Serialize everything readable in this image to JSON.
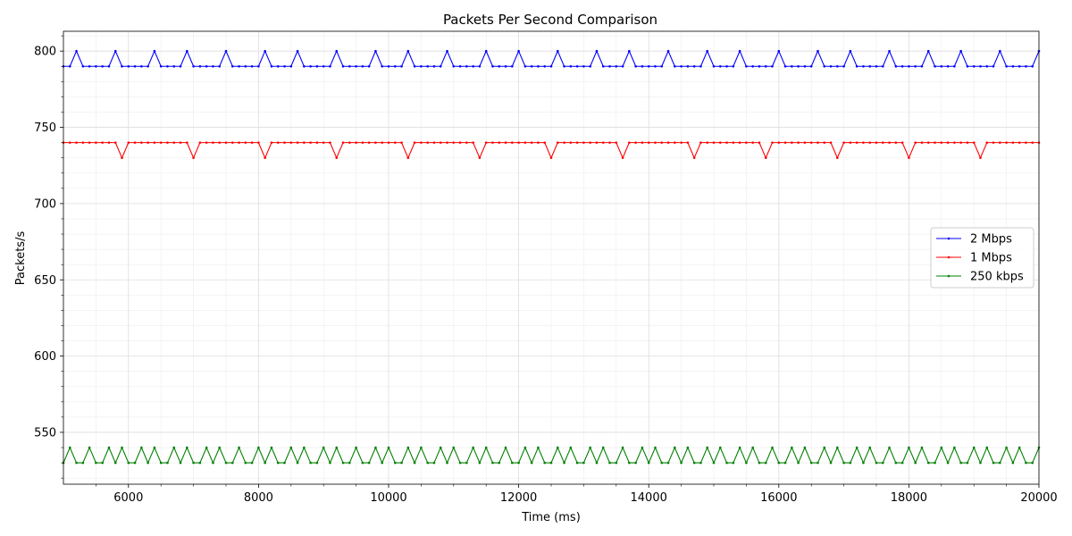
{
  "chart_data": {
    "type": "line",
    "title": "Packets Per Second Comparison",
    "xlabel": "Time (ms)",
    "ylabel": "Packets/s",
    "xlim": [
      5000,
      20000
    ],
    "ylim": [
      516,
      813
    ],
    "xticks": [
      6000,
      8000,
      10000,
      12000,
      14000,
      16000,
      18000,
      20000
    ],
    "yticks": [
      550,
      600,
      650,
      700,
      750,
      800
    ],
    "grid": true,
    "legend_position": "center-right",
    "x": [
      5000,
      5100,
      5200,
      5300,
      5400,
      5500,
      5600,
      5700,
      5800,
      5900,
      6000,
      6100,
      6200,
      6300,
      6400,
      6500,
      6600,
      6700,
      6800,
      6900,
      7000,
      7100,
      7200,
      7300,
      7400,
      7500,
      7600,
      7700,
      7800,
      7900,
      8000,
      8100,
      8200,
      8300,
      8400,
      8500,
      8600,
      8700,
      8800,
      8900,
      9000,
      9100,
      9200,
      9300,
      9400,
      9500,
      9600,
      9700,
      9800,
      9900,
      10000,
      10100,
      10200,
      10300,
      10400,
      10500,
      10600,
      10700,
      10800,
      10900,
      11000,
      11100,
      11200,
      11300,
      11400,
      11500,
      11600,
      11700,
      11800,
      11900,
      12000,
      12100,
      12200,
      12300,
      12400,
      12500,
      12600,
      12700,
      12800,
      12900,
      13000,
      13100,
      13200,
      13300,
      13400,
      13500,
      13600,
      13700,
      13800,
      13900,
      14000,
      14100,
      14200,
      14300,
      14400,
      14500,
      14600,
      14700,
      14800,
      14900,
      15000,
      15100,
      15200,
      15300,
      15400,
      15500,
      15600,
      15700,
      15800,
      15900,
      16000,
      16100,
      16200,
      16300,
      16400,
      16500,
      16600,
      16700,
      16800,
      16900,
      17000,
      17100,
      17200,
      17300,
      17400,
      17500,
      17600,
      17700,
      17800,
      17900,
      18000,
      18100,
      18200,
      18300,
      18400,
      18500,
      18600,
      18700,
      18800,
      18900,
      19000,
      19100,
      19200,
      19300,
      19400,
      19500,
      19600,
      19700,
      19800,
      19900,
      20000
    ],
    "series": [
      {
        "name": "2 Mbps",
        "color": "#0000ff",
        "values": [
          790,
          790,
          800,
          790,
          790,
          790,
          790,
          790,
          800,
          790,
          790,
          790,
          790,
          790,
          800,
          790,
          790,
          790,
          790,
          800,
          790,
          790,
          790,
          790,
          790,
          800,
          790,
          790,
          790,
          790,
          790,
          800,
          790,
          790,
          790,
          790,
          800,
          790,
          790,
          790,
          790,
          790,
          800,
          790,
          790,
          790,
          790,
          790,
          800,
          790,
          790,
          790,
          790,
          800,
          790,
          790,
          790,
          790,
          790,
          800,
          790,
          790,
          790,
          790,
          790,
          800,
          790,
          790,
          790,
          790,
          800,
          790,
          790,
          790,
          790,
          790,
          800,
          790,
          790,
          790,
          790,
          790,
          800,
          790,
          790,
          790,
          790,
          800,
          790,
          790,
          790,
          790,
          790,
          800,
          790,
          790,
          790,
          790,
          790,
          800,
          790,
          790,
          790,
          790,
          800,
          790,
          790,
          790,
          790,
          790,
          800,
          790,
          790,
          790,
          790,
          790,
          800,
          790,
          790,
          790,
          790,
          800,
          790,
          790,
          790,
          790,
          790,
          800,
          790,
          790,
          790,
          790,
          790,
          800,
          790,
          790,
          790,
          790,
          800,
          790,
          790,
          790,
          790,
          790,
          800,
          790,
          790,
          790,
          790,
          790,
          800
        ]
      },
      {
        "name": "1 Mbps",
        "color": "#ff0000",
        "values": [
          740,
          740,
          740,
          740,
          740,
          740,
          740,
          740,
          740,
          730,
          740,
          740,
          740,
          740,
          740,
          740,
          740,
          740,
          740,
          740,
          730,
          740,
          740,
          740,
          740,
          740,
          740,
          740,
          740,
          740,
          740,
          730,
          740,
          740,
          740,
          740,
          740,
          740,
          740,
          740,
          740,
          740,
          730,
          740,
          740,
          740,
          740,
          740,
          740,
          740,
          740,
          740,
          740,
          730,
          740,
          740,
          740,
          740,
          740,
          740,
          740,
          740,
          740,
          740,
          730,
          740,
          740,
          740,
          740,
          740,
          740,
          740,
          740,
          740,
          740,
          730,
          740,
          740,
          740,
          740,
          740,
          740,
          740,
          740,
          740,
          740,
          730,
          740,
          740,
          740,
          740,
          740,
          740,
          740,
          740,
          740,
          740,
          730,
          740,
          740,
          740,
          740,
          740,
          740,
          740,
          740,
          740,
          740,
          730,
          740,
          740,
          740,
          740,
          740,
          740,
          740,
          740,
          740,
          740,
          730,
          740,
          740,
          740,
          740,
          740,
          740,
          740,
          740,
          740,
          740,
          730,
          740,
          740,
          740,
          740,
          740,
          740,
          740,
          740,
          740,
          740,
          730,
          740,
          740,
          740,
          740,
          740,
          740,
          740,
          740,
          740
        ]
      },
      {
        "name": "250 kbps",
        "color": "#008000",
        "values": [
          530,
          540,
          530,
          530,
          540,
          530,
          530,
          540,
          530,
          540,
          530,
          530,
          540,
          530,
          540,
          530,
          530,
          540,
          530,
          540,
          530,
          530,
          540,
          530,
          540,
          530,
          530,
          540,
          530,
          530,
          540,
          530,
          540,
          530,
          530,
          540,
          530,
          540,
          530,
          530,
          540,
          530,
          540,
          530,
          530,
          540,
          530,
          530,
          540,
          530,
          540,
          530,
          530,
          540,
          530,
          540,
          530,
          530,
          540,
          530,
          540,
          530,
          530,
          540,
          530,
          540,
          530,
          530,
          540,
          530,
          530,
          540,
          530,
          540,
          530,
          530,
          540,
          530,
          540,
          530,
          530,
          540,
          530,
          540,
          530,
          530,
          540,
          530,
          530,
          540,
          530,
          540,
          530,
          530,
          540,
          530,
          540,
          530,
          530,
          540,
          530,
          540,
          530,
          530,
          540,
          530,
          540,
          530,
          530,
          540,
          530,
          530,
          540,
          530,
          540,
          530,
          530,
          540,
          530,
          540,
          530,
          530,
          540,
          530,
          540,
          530,
          530,
          540,
          530,
          530,
          540,
          530,
          540,
          530,
          530,
          540,
          530,
          540,
          530,
          530,
          540,
          530,
          540,
          530,
          530,
          540,
          530,
          540,
          530,
          530,
          540
        ]
      }
    ]
  }
}
